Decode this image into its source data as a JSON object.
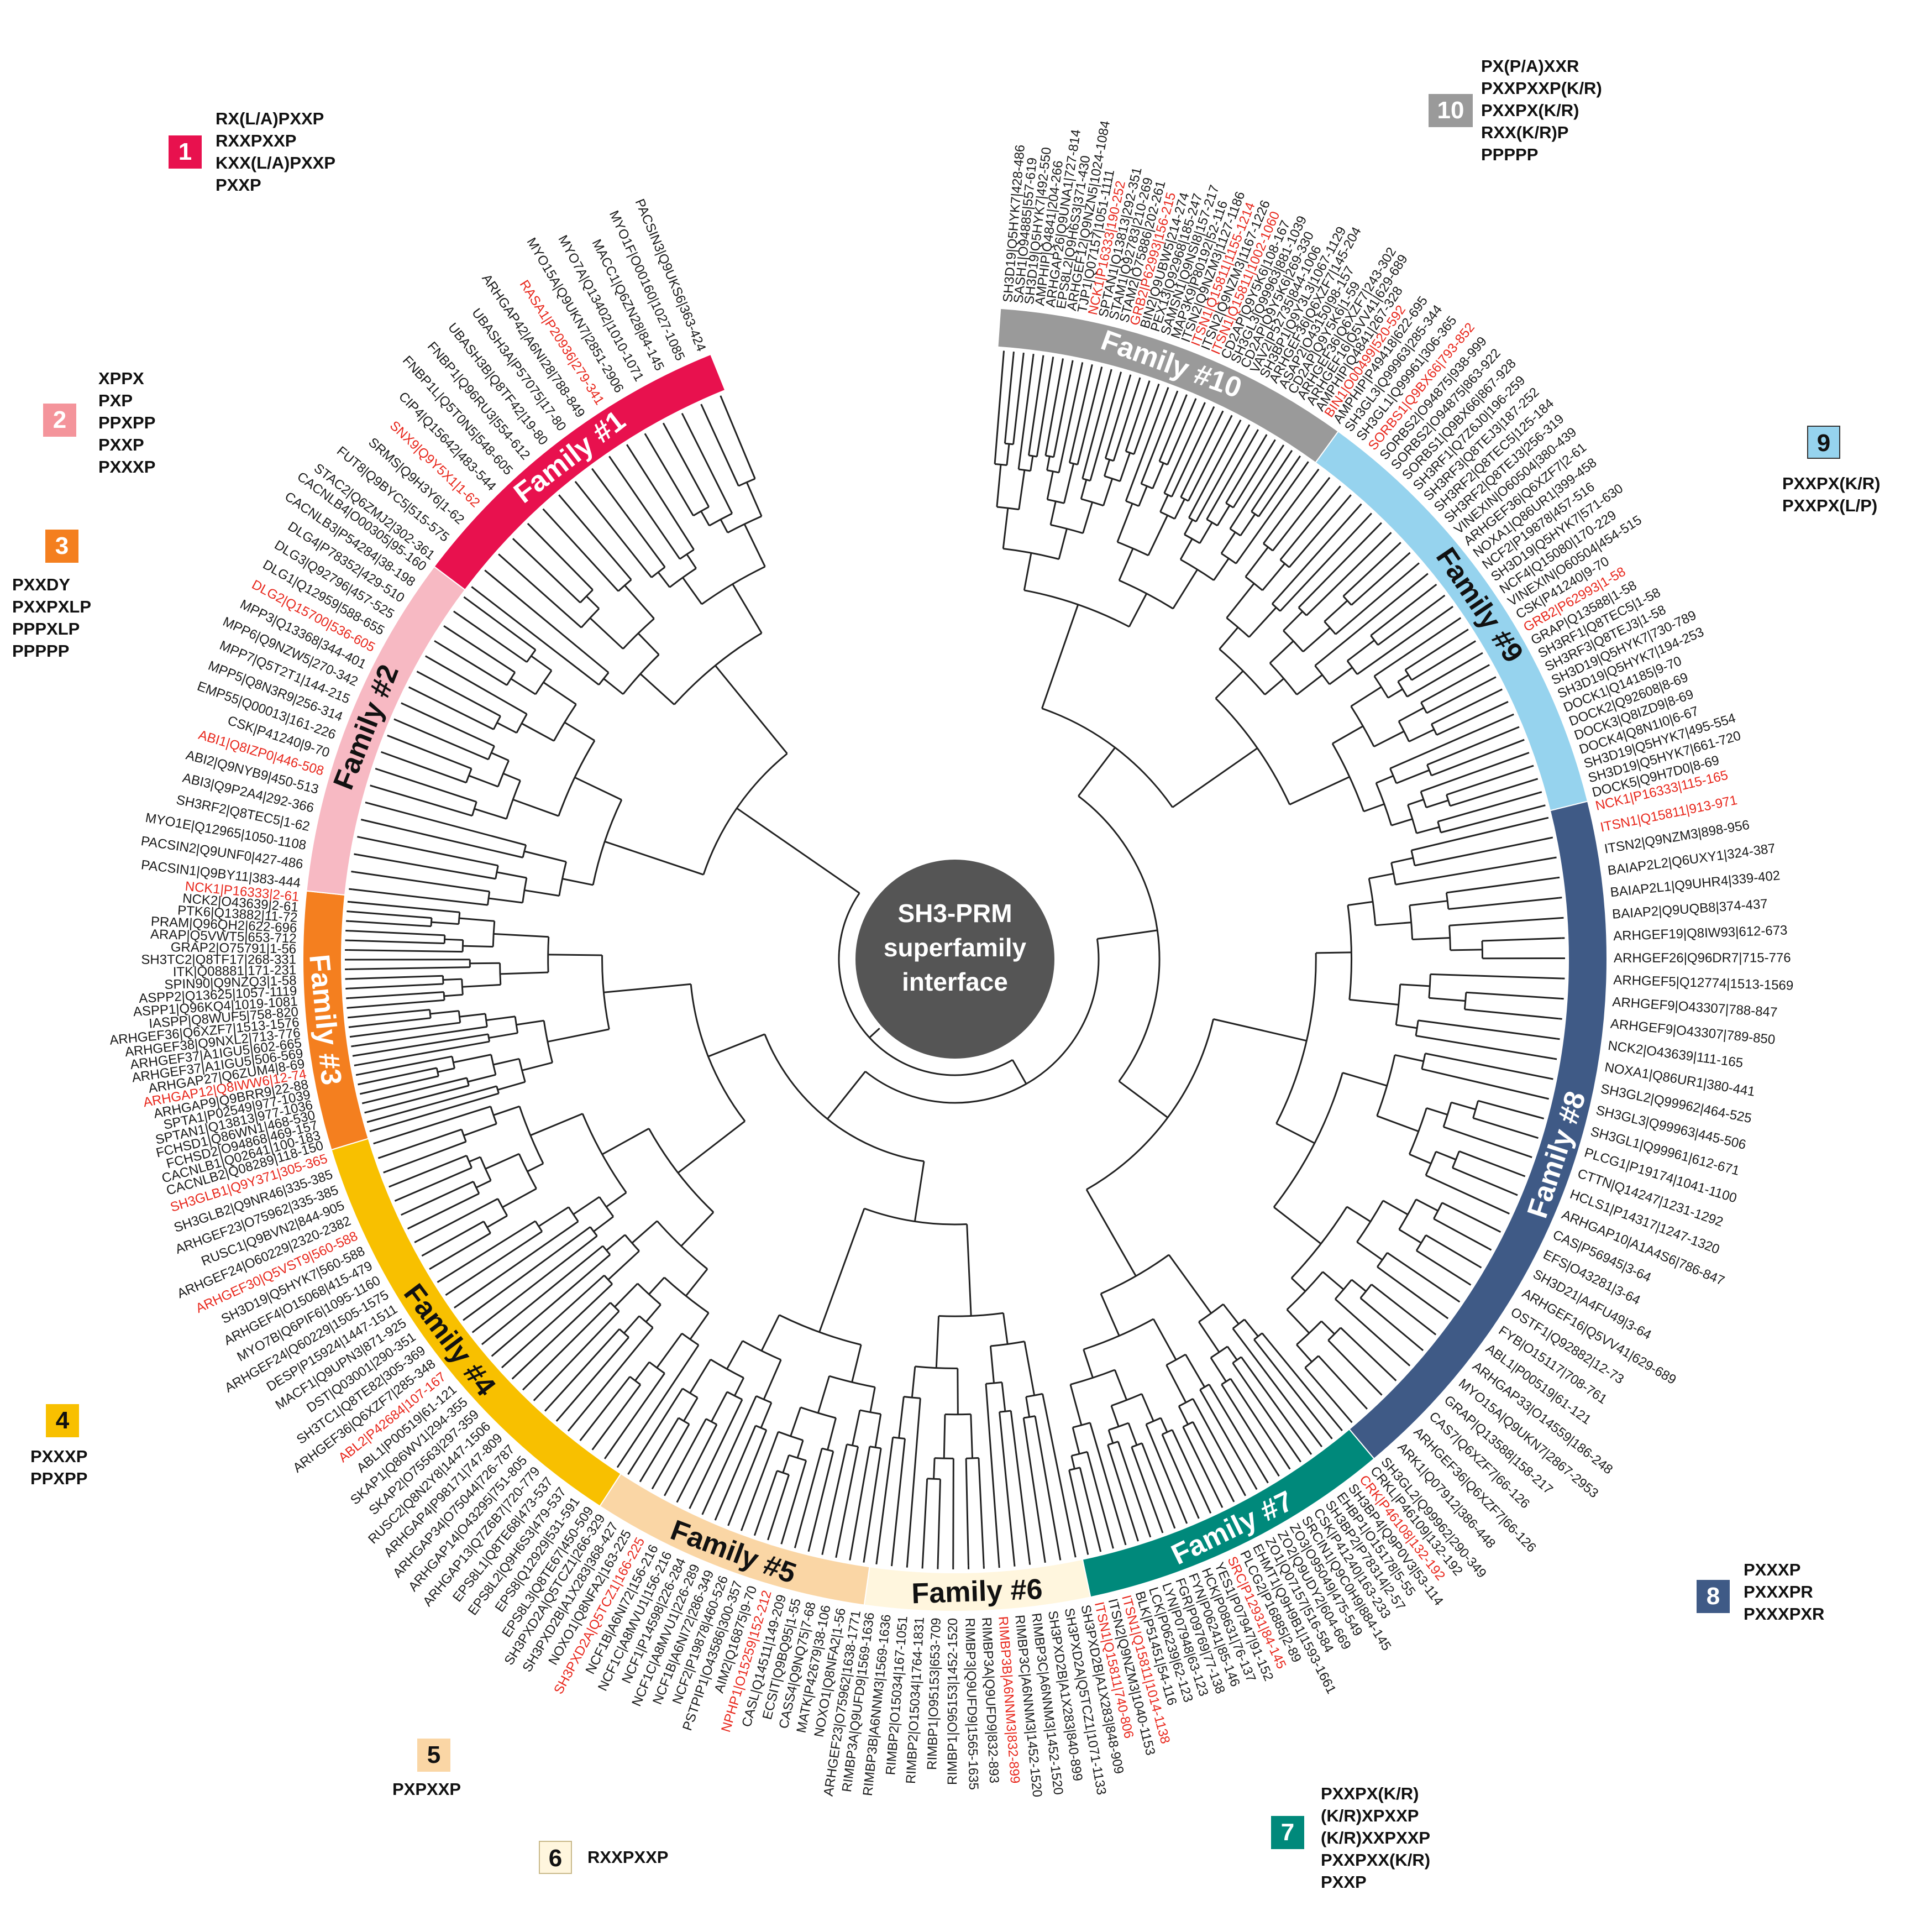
{
  "center_label": [
    "SH3-PRM",
    "superfamily",
    "interface"
  ],
  "families": [
    {
      "number": "1",
      "label": "Family #1",
      "color": "#e8114e",
      "label_color": "#ffffff",
      "motifs": [
        "RX(L/A)PXXP",
        "RXXPXXP",
        "KXX(L/A)PXXP",
        "PXXP"
      ],
      "leaves": [
        "STAC2|Q6ZMJ2|302-361",
        "FUT8|Q9BYC5|515-575",
        "SRMS|Q9H3Y6|1-62",
        "SNX9|Q9Y5X1|1-62",
        "CIP4|Q15642|483-544",
        "FNBP1L|Q5T0N5|548-605",
        "FNBP1|Q96RU3|554-612",
        "UBASH3B|Q8TF42|19-80",
        "UBASH3A|P57075|17-80",
        "ARHGAP42|A6NI28|788-849",
        "RASA1|P20936|279-341",
        "MYO15A|Q9UKN7|2851-2906",
        "MYO7A|Q13402|1010-1071",
        "MACC1|Q6ZN28|84-145",
        "MYO1F|O00160|1027-1085",
        "PACSIN3|Q9UKS6|363-424"
      ]
    },
    {
      "number": "2",
      "label": "Family #2",
      "color": "#f7b9c3",
      "label_color": "#111111",
      "motifs": [
        "XPPX",
        "PXP",
        "PPXPP",
        "PXXP",
        "PXXXP"
      ],
      "leaves": [
        "PACSIN1|Q9BY11|383-444",
        "PACSIN2|Q9UNF0|427-486",
        "MYO1E|Q12965|1050-1108",
        "SH3RF2|Q8TEC5|1-62",
        "ABI3|Q9P2A4|292-366",
        "ABI2|Q9NYB9|450-513",
        "ABI1|Q8IZP0|446-508",
        "CSK|P41240|9-70",
        "EMP55|Q00013|161-226",
        "MPP5|Q8N3R9|256-314",
        "MPP7|Q5T2T1|144-215",
        "MPP6|Q9NZW5|270-342",
        "MPP3|Q13368|344-401",
        "DLG2|Q15700|536-605",
        "DLG1|Q12959|588-655",
        "DLG3|Q92796|457-525",
        "DLG4|P78352|429-510",
        "CACNLB3|P54284|38-198",
        "CACNLB4|O00305|95-160"
      ]
    },
    {
      "number": "3",
      "label": "Family #3",
      "color": "#f47f1f",
      "label_color": "#ffffff",
      "motifs": [
        "PXXDY",
        "PXXPXLP",
        "PPPXLP",
        "PPPPP"
      ],
      "leaves": [
        "CACNLB2|Q08289|118-150",
        "CACNLB1|Q02641|100-183",
        "FCHSD2|O94868|469-157",
        "FCHSD1|Q86WN1|468-530",
        "SPTAN1|Q13813|977-1036",
        "SPTA1|P02549|977-1039",
        "ARHGAP9|Q9BRR9|22-88",
        "ARHGAP12|Q8IWW6|12-74",
        "ARHGAP27|Q6ZUM4|8-69",
        "ARHGEF37|A1IGU5|506-569",
        "ARHGEF37|A1IGU5|602-665",
        "ARHGEF38|Q9NXL2|713-776",
        "ARHGEF36|Q6XZF7|1513-1576",
        "IASPP|Q8WUF5|758-820",
        "ASPP1|Q96KQ4|1019-1081",
        "ASPP2|Q13625|1057-1119",
        "SPIN90|Q9NZQ3|1-58",
        "ITK|Q08881|171-231",
        "SH3TC2|Q8TF17|268-331",
        "GRAP2|O75791|1-56",
        "ARAP|Q5VWT5|653-712",
        "PRAM|Q96QH2|622-696",
        "PTK6|Q13882|11-72",
        "NCK2|O43639|2-61",
        "NCK1|P16333|2-61"
      ]
    },
    {
      "number": "4",
      "label": "Family #4",
      "color": "#f8c000",
      "label_color": "#111111",
      "motifs": [
        "PXXXP",
        "PPXPP"
      ],
      "leaves": [
        "EPS8L3|Q8TE67|450-509",
        "EPS8|Q12929|531-591",
        "EPS8L2|Q9H6S3|479-537",
        "EPS8L1|Q8TE68|473-537",
        "ARHGAP13|Q7Z6B7|720-779",
        "ARHGAP14|O43295|751-805",
        "ARHGAP34|O75044|726-787",
        "ARHGAP4|P98171|747-809",
        "RUSC2|Q8N2Y8|1447-1506",
        "SKAP2|O75563|297-359",
        "SKAP1|Q86WV1|294-355",
        "ABL1|P00519|61-121",
        "ABL2|P42684|107-167",
        "ARHGEF36|Q6XZF7|285-348",
        "SH3TC1|Q8TE82|305-369",
        "DST|Q03001|290-351",
        "MACF1|Q9UPN3|871-925",
        "DESP|P15924|1447-1511",
        "ARHGEF24|Q60229|1505-1575",
        "MYO7B|Q6PIF6|1095-1160",
        "ARHGEF4|O15068|415-479",
        "SH3D19|Q5HYK7|560-588",
        "ARHGEF30|Q5VST9|560-588",
        "ARHGEF24|O60229|2320-2382",
        "RUSC1|Q9BVN2|844-905",
        "ARHGEF23|O75962|335-385",
        "SH3GLB2|Q9NR46|335-385",
        "SH3GLB1|Q9Y371|305-365"
      ]
    },
    {
      "number": "5",
      "label": "Family #5",
      "color": "#fad6a5",
      "label_color": "#111111",
      "motifs": [
        "PXPXXP"
      ],
      "leaves": [
        "ARHGEF23|O75962|1638-1771",
        "NOXO1|Q8NFA2|1-56",
        "MATK|P42679|38-106",
        "CASS4|Q9NQ75|7-68",
        "ECSIT|Q9BQ95|1-55",
        "CASL|Q14511|149-209",
        "NPHP1|O15259|152-212",
        "AIM2|Q16875|9-70",
        "PSTPIP1|O43586|300-357",
        "NCF2|P19878|460-526",
        "NCF1B|A6NI72|286-349",
        "NCF1C|A8MVU1|226-289",
        "NCF1|P14598|226-284",
        "NCF1C|A8MVU1|156-216",
        "NCF1B|A6NI72|156-216",
        "SH3PXD2A|Q5TCZ1|166-225",
        "NOXO1|Q8NFA2|163-225",
        "SH3PXD2B|A1X283|368-427",
        "SH3PXD2A|Q5TCZ1|266-329"
      ]
    },
    {
      "number": "6",
      "label": "Family #6",
      "color": "#fff6de",
      "label_color": "#111111",
      "motifs": [
        "RXXPXXP"
      ],
      "leaves": [
        "SH3PXD2B|A1X283|848-909",
        "SH3PXD2A|Q5TCZ1|1071-1133",
        "SH3PXD2B|A1X283|840-899",
        "RIMBP3C|A6NNM3|1452-1520",
        "RIMBP3C|A6NNM3|1452-1520",
        "RIMBP3B|A6NNM3|832-899",
        "RIMBP3A|Q9UFD9|832-893",
        "RIMBP3|Q9UFD9|1565-1635",
        "RIMBP1|O95153|1452-1520",
        "RIMBP1|O95153|653-709",
        "RIMBP2|O15034|1764-1831",
        "RIMBP2|O15034|167-1051",
        "RIMBP3B|A6NNM3|1569-1636",
        "RIMBP3A|Q9UFD9|1569-1636"
      ]
    },
    {
      "number": "7",
      "label": "Family #7",
      "color": "#00897b",
      "label_color": "#ffffff",
      "motifs": [
        "PXXPX(K/R)",
        "(K/R)XPXXP",
        "(K/R)XXPXXP",
        "PXXPXX(K/R)",
        "PXXP"
      ],
      "leaves": [
        "CRKL|P46109|132-192",
        "CRK|P46108|132-192",
        "SH3BP4|Q9P0V3|53-114",
        "EHBP1|O15178|5-55",
        "SH3BP2|P78314|2-57",
        "CSK|P41240|163-233",
        "SRCIN1|Q9C0H9|884-145",
        "ZO3|O95049|475-549",
        "ZO2|Q9UDY2|604-669",
        "ZO1|Q07157|516-584",
        "EHMT1|Q9H9B1|1593-1661",
        "PLCG2|P16885|2-89",
        "SRC|P12931|84-145",
        "YES1|P07947|91-152",
        "HCK|P08631|76-137",
        "FYN|P06241|85-146",
        "FGR|P09769|77-138",
        "LYN|P07948|63-123",
        "LCK|P06239|62-123",
        "BLK|P51451|54-116",
        "ITSN1|Q15811|1014-1138",
        "ITSN2|Q9NZM3|1040-1153",
        "ITSN1|Q15811|740-806"
      ]
    },
    {
      "number": "8",
      "label": "Family #8",
      "color": "#3f5a86",
      "label_color": "#ffffff",
      "motifs": [
        "PXXXP",
        "PXXXPR",
        "PXXXPXR"
      ],
      "leaves": [
        "NCK1|P16333|115-165",
        "ITSN1|Q15811|913-971",
        "ITSN2|Q9NZM3|898-956",
        "BAIAP2L2|Q6UXY1|324-387",
        "BAIAP2L1|Q9UHR4|339-402",
        "BAIAP2|Q9UQB8|374-437",
        "ARHGEF19|Q8IW93|612-673",
        "ARHGEF26|Q96DR7|715-776",
        "ARHGEF5|Q12774|1513-1569",
        "ARHGEF9|O43307|788-847",
        "ARHGEF9|O43307|789-850",
        "NCK2|O43639|111-165",
        "NOXA1|Q86UR1|380-441",
        "SH3GL2|Q99962|464-525",
        "SH3GL3|Q99963|445-506",
        "SH3GL1|Q99961|612-671",
        "PLCG1|P19174|1041-1100",
        "CTTN|Q14247|1231-1292",
        "HCLS1|P14317|1247-1320",
        "ARHGAP10|A1A4S6|786-847",
        "CAS|P56945|3-64",
        "EFS|O43281|3-64",
        "SH3D21|A4FU49|3-64",
        "ARHGEF16|Q5VV41|629-689",
        "OSTF1|Q92882|12-73",
        "FYB|O15117|708-761",
        "ABL1|P00519|61-121",
        "ARHGAP33|O14559|186-248",
        "MYO15A|Q9UKN7|2867-2953",
        "GRAP|Q13588|158-217",
        "CAS7|Q6XZF7|66-126",
        "ARHGEF36|Q6XZF7|66-126",
        "ARK1|Q07912|386-448",
        "SH3GL2|Q99962|290-349"
      ]
    },
    {
      "number": "9",
      "label": "Family #9",
      "color": "#96d3ee",
      "label_color": "#111111",
      "motifs": [
        "PXXPX(K/R)",
        "PXXPX(L/P)"
      ],
      "leaves": [
        "SH3GL3|Q99963|285-344",
        "SH3GL1|Q99961|306-365",
        "SORBS1|Q9BX66|793-852",
        "SORBS2|O94875|938-999",
        "SORBS2|O94875|863-922",
        "SORBS1|Q9BX66|867-928",
        "SH3RF1|Q7Z6J0|196-259",
        "SH3RF3|Q8TEJ3|187-252",
        "SH3RF2|Q8TEC5|125-184",
        "SH3RF2|Q8TEJ3|256-319",
        "VINEXIN|O60504|380-439",
        "ARHGEF36|Q6XZF7|2-61",
        "NOXA1|Q86UR1|399-458",
        "NCF2|P19878|457-516",
        "SH3D19|Q5HYK7|571-630",
        "NCF4|Q15080|170-229",
        "VINEXIN|O60504|454-515",
        "CSK|P41240|9-70",
        "GRB2|P62993|1-58",
        "GRAP|Q13588|1-58",
        "SH3RF1|Q8TEC5|1-58",
        "SH3RF3|Q8TEJ3|1-58",
        "SH3D19|Q5HYK7|730-789",
        "SH3D19|Q5HYK7|194-253",
        "DOCK1|Q14185|9-70",
        "DOCK2|Q92608|8-69",
        "DOCK3|Q8IZD9|8-69",
        "DOCK4|Q8N1I0|6-67",
        "SH3D19|Q5HYK7|495-554",
        "SH3D19|Q5HYK7|661-720",
        "DOCK5|Q9H7D0|8-69"
      ]
    },
    {
      "number": "10",
      "label": "Family #10",
      "color": "#9a9a9a",
      "label_color": "#ffffff",
      "motifs": [
        "PX(P/A)XXR",
        "PXXPXXP(K/R)",
        "PXXPX(K/R)",
        "RXX(K/R)P",
        "PPPPP"
      ],
      "leaves": [
        "SH3D19|Q5HYK7|428-486",
        "SASH1|O94885|557-619",
        "SH3D19|Q5HYK7|492-550",
        "AMPHIP|Q4841|204-266",
        "ARHGAP26|Q9UNA1|727-814",
        "EPS8L2|Q9H6S3|371-430",
        "ARHGEF12|Q9NZN5|1024-1084",
        "TJP1|Q07157|1051-1111",
        "NCK1|P16333|190-252",
        "SPTAN1|Q13813|292-351",
        "STAM1|Q92783|210-269",
        "STAM2|O75886|202-261",
        "GRB2|P62993|156-215",
        "BIN2|Q9UBW5|214-274",
        "PEX13|Q92968|185-247",
        "SAMSN1|Q9NSI8|157-217",
        "MAP3K9|P80192|52-116",
        "ITSN2|Q9NZM3|1127-1186",
        "ITSN1|Q15811|1155-1214",
        "ITSN2|Q9NZM3|1167-1226",
        "ITSN1|Q15811|1002-1060",
        "CD2AP|Q9Y5K6|108-167",
        "SH3GL3|Q99963|881-1039",
        "CD2AP|Q9Y5K6|269-330",
        "VAV2|P52735|844-1006",
        "SH3BP1|Q9Y3L3|1067-1129",
        "ARHGEF36|Q6XZF7|145-204",
        "ASAP2|O43150|98-157",
        "CD2AP|Q9Y5K6|1-59",
        "ARHGEF36|Q6XZF7|243-302",
        "ARHGEF16|Q5VV41|629-689",
        "AMPHIP|Q4841|267-328",
        "BIN1|O00499|520-592",
        "AMPHIP|P49418|622-695"
      ]
    }
  ],
  "colors": {
    "center_fill": "#555555",
    "center_text": "#ffffff",
    "leaf_text": "#1a1a1a",
    "leaf_highlight": "#e8271c",
    "tree_line": "#222222"
  },
  "highlighted_leaves": [
    "SNX9|Q9Y5X1|1-62",
    "RASA1|P20936|279-341",
    "ABI1|Q8IZP0|446-508",
    "DLG2|Q15700|536-605",
    "ARHGAP12|Q8IWW6|12-74",
    "NCK1|P16333|2-61",
    "ABL2|P42684|107-167",
    "ARHGEF30|Q5VST9|560-588",
    "SH3GLB1|Q9Y371|305-365",
    "NPHP1|O15259|152-212",
    "SH3PXD2A|Q5TCZ1|166-225",
    "RIMBP3B|A6NNM3|832-899",
    "CRK|P46108|132-192",
    "SRC|P12931|84-145",
    "ITSN1|Q15811|1014-1138",
    "ITSN1|Q15811|740-806",
    "NCK1|P16333|115-165",
    "ITSN1|Q15811|913-971",
    "SORBS1|Q9BX66|793-852",
    "GRB2|P62993|1-58",
    "NCK1|P16333|190-252",
    "GRB2|P62993|156-215",
    "ITSN1|Q15811|1155-1214",
    "ITSN1|Q15811|1002-1060",
    "BIN1|O00499|520-592"
  ]
}
